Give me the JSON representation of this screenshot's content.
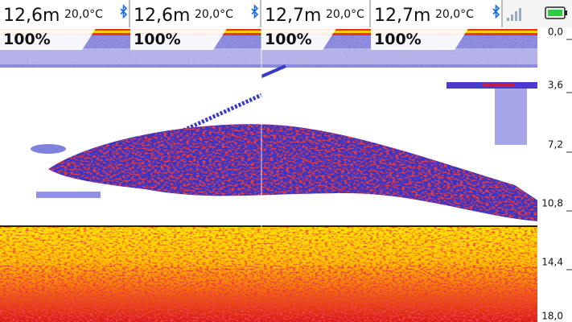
{
  "panels": [
    {
      "depth": "12,6m",
      "temperature": "20,0°C",
      "gain": "100%"
    },
    {
      "depth": "12,6m",
      "temperature": "20,0°C",
      "gain": "100%"
    },
    {
      "depth": "12,7m",
      "temperature": "20,0°C",
      "gain": "100%"
    },
    {
      "depth": "12,7m",
      "temperature": "20,0°C",
      "gain": "100%"
    }
  ],
  "depth_scale": [
    "0,0",
    "3,6",
    "7,2",
    "10,8",
    "14,4",
    "18,0"
  ]
}
